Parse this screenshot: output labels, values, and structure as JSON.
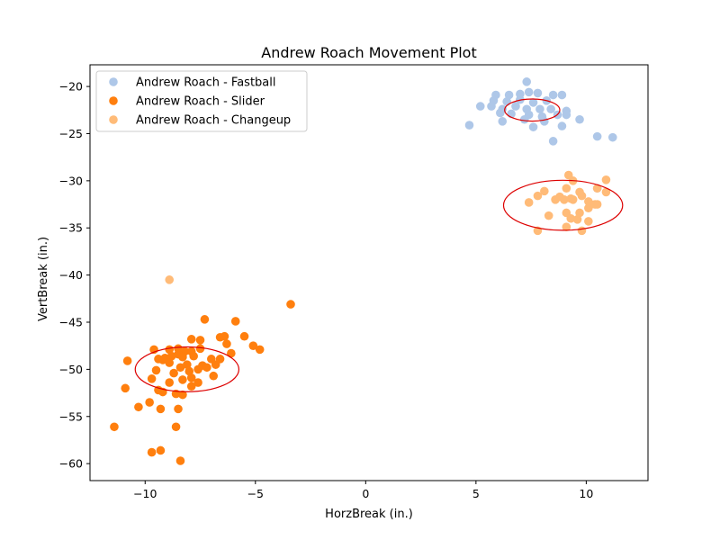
{
  "chart_data": {
    "type": "scatter",
    "title": "Andrew Roach Movement Plot",
    "xlabel": "HorzBreak (in.)",
    "ylabel": "VertBreak (in.)",
    "xlim": [
      -12.5,
      12.8
    ],
    "ylim": [
      -61.8,
      -17.7
    ],
    "xticks": [
      -10,
      -5,
      0,
      5,
      10
    ],
    "yticks": [
      -20,
      -25,
      -30,
      -35,
      -40,
      -45,
      -50,
      -55,
      -60
    ],
    "grid": false,
    "legend_position": "top-left",
    "series": [
      {
        "name": "Andrew Roach - Fastball",
        "color": "#aec7e8",
        "points": [
          [
            7.3,
            -19.5
          ],
          [
            5.9,
            -20.9
          ],
          [
            6.5,
            -20.9
          ],
          [
            7.0,
            -20.8
          ],
          [
            7.4,
            -20.6
          ],
          [
            7.8,
            -20.7
          ],
          [
            8.5,
            -20.9
          ],
          [
            8.9,
            -20.9
          ],
          [
            5.8,
            -21.5
          ],
          [
            6.4,
            -21.6
          ],
          [
            7.0,
            -21.4
          ],
          [
            7.6,
            -21.7
          ],
          [
            8.2,
            -21.5
          ],
          [
            5.2,
            -22.1
          ],
          [
            5.7,
            -22.1
          ],
          [
            6.2,
            -22.4
          ],
          [
            6.8,
            -22.1
          ],
          [
            7.3,
            -22.4
          ],
          [
            7.9,
            -22.4
          ],
          [
            8.4,
            -22.4
          ],
          [
            9.1,
            -22.6
          ],
          [
            6.1,
            -22.8
          ],
          [
            6.6,
            -22.9
          ],
          [
            7.4,
            -23.0
          ],
          [
            8.0,
            -23.2
          ],
          [
            8.7,
            -23.0
          ],
          [
            9.1,
            -23.0
          ],
          [
            6.2,
            -23.7
          ],
          [
            7.2,
            -23.5
          ],
          [
            8.1,
            -23.7
          ],
          [
            9.7,
            -23.5
          ],
          [
            4.7,
            -24.1
          ],
          [
            7.6,
            -24.3
          ],
          [
            8.9,
            -24.2
          ],
          [
            10.5,
            -25.3
          ],
          [
            11.2,
            -25.4
          ],
          [
            8.5,
            -25.8
          ],
          [
            10.5,
            -30.8
          ]
        ]
      },
      {
        "name": "Andrew Roach - Slider",
        "color": "#ff7f0e",
        "points": [
          [
            -3.4,
            -43.1
          ],
          [
            -7.3,
            -44.7
          ],
          [
            -5.9,
            -44.9
          ],
          [
            -6.6,
            -46.6
          ],
          [
            -6.4,
            -46.5
          ],
          [
            -5.5,
            -46.5
          ],
          [
            -7.5,
            -46.9
          ],
          [
            -7.9,
            -46.8
          ],
          [
            -6.3,
            -47.3
          ],
          [
            -5.1,
            -47.5
          ],
          [
            -4.8,
            -47.9
          ],
          [
            -9.6,
            -47.9
          ],
          [
            -8.9,
            -47.9
          ],
          [
            -8.5,
            -47.8
          ],
          [
            -8.2,
            -48.1
          ],
          [
            -7.9,
            -48.1
          ],
          [
            -7.5,
            -47.8
          ],
          [
            -6.1,
            -48.3
          ],
          [
            -9.4,
            -48.9
          ],
          [
            -9.1,
            -48.8
          ],
          [
            -8.8,
            -48.6
          ],
          [
            -8.5,
            -48.4
          ],
          [
            -8.3,
            -48.7
          ],
          [
            -7.8,
            -48.6
          ],
          [
            -10.8,
            -49.1
          ],
          [
            -9.2,
            -49.0
          ],
          [
            -8.9,
            -49.3
          ],
          [
            -8.1,
            -49.5
          ],
          [
            -7.4,
            -49.6
          ],
          [
            -7.0,
            -48.9
          ],
          [
            -6.8,
            -49.5
          ],
          [
            -6.6,
            -48.9
          ],
          [
            -9.5,
            -50.1
          ],
          [
            -8.7,
            -50.4
          ],
          [
            -8.4,
            -49.8
          ],
          [
            -8.0,
            -50.2
          ],
          [
            -7.6,
            -50.0
          ],
          [
            -7.2,
            -49.8
          ],
          [
            -9.7,
            -51.0
          ],
          [
            -8.9,
            -51.4
          ],
          [
            -8.3,
            -51.1
          ],
          [
            -7.9,
            -50.9
          ],
          [
            -7.6,
            -51.4
          ],
          [
            -6.9,
            -50.7
          ],
          [
            -10.9,
            -52.0
          ],
          [
            -9.4,
            -52.2
          ],
          [
            -9.2,
            -52.4
          ],
          [
            -8.6,
            -52.6
          ],
          [
            -8.3,
            -52.7
          ],
          [
            -7.9,
            -51.8
          ],
          [
            -9.8,
            -53.5
          ],
          [
            -10.3,
            -54.0
          ],
          [
            -9.3,
            -54.2
          ],
          [
            -8.5,
            -54.2
          ],
          [
            -11.4,
            -56.1
          ],
          [
            -8.6,
            -56.1
          ],
          [
            -9.3,
            -58.6
          ],
          [
            -9.7,
            -58.8
          ],
          [
            -8.4,
            -59.7
          ]
        ]
      },
      {
        "name": "Andrew Roach - Changeup",
        "color": "#ffbb78",
        "points": [
          [
            9.2,
            -29.4
          ],
          [
            9.4,
            -30.0
          ],
          [
            10.9,
            -29.9
          ],
          [
            9.1,
            -30.8
          ],
          [
            10.5,
            -30.8
          ],
          [
            8.1,
            -31.1
          ],
          [
            9.7,
            -31.2
          ],
          [
            10.9,
            -31.2
          ],
          [
            7.8,
            -31.6
          ],
          [
            8.8,
            -31.7
          ],
          [
            9.3,
            -31.9
          ],
          [
            9.8,
            -31.6
          ],
          [
            8.6,
            -32.0
          ],
          [
            9.0,
            -32.0
          ],
          [
            9.4,
            -32.0
          ],
          [
            10.1,
            -32.2
          ],
          [
            7.4,
            -32.3
          ],
          [
            10.2,
            -32.5
          ],
          [
            10.4,
            -32.5
          ],
          [
            10.5,
            -32.5
          ],
          [
            10.1,
            -32.9
          ],
          [
            9.1,
            -33.4
          ],
          [
            9.7,
            -33.4
          ],
          [
            8.3,
            -33.7
          ],
          [
            9.3,
            -34.0
          ],
          [
            9.6,
            -34.1
          ],
          [
            10.1,
            -34.3
          ],
          [
            9.1,
            -34.9
          ],
          [
            7.8,
            -35.3
          ],
          [
            9.8,
            -35.3
          ],
          [
            -8.9,
            -40.5
          ]
        ]
      }
    ],
    "ellipses": [
      {
        "series": "Andrew Roach - Fastball",
        "center": [
          7.55,
          -22.5
        ],
        "width": 2.5,
        "height": 2.35,
        "color": "#dd0000"
      },
      {
        "series": "Andrew Roach - Slider",
        "center": [
          -8.1,
          -50.0
        ],
        "width": 4.7,
        "height": 4.75,
        "color": "#dd0000"
      },
      {
        "series": "Andrew Roach - Changeup",
        "center": [
          8.95,
          -32.6
        ],
        "width": 5.4,
        "height": 5.3,
        "color": "#dd0000"
      }
    ]
  }
}
